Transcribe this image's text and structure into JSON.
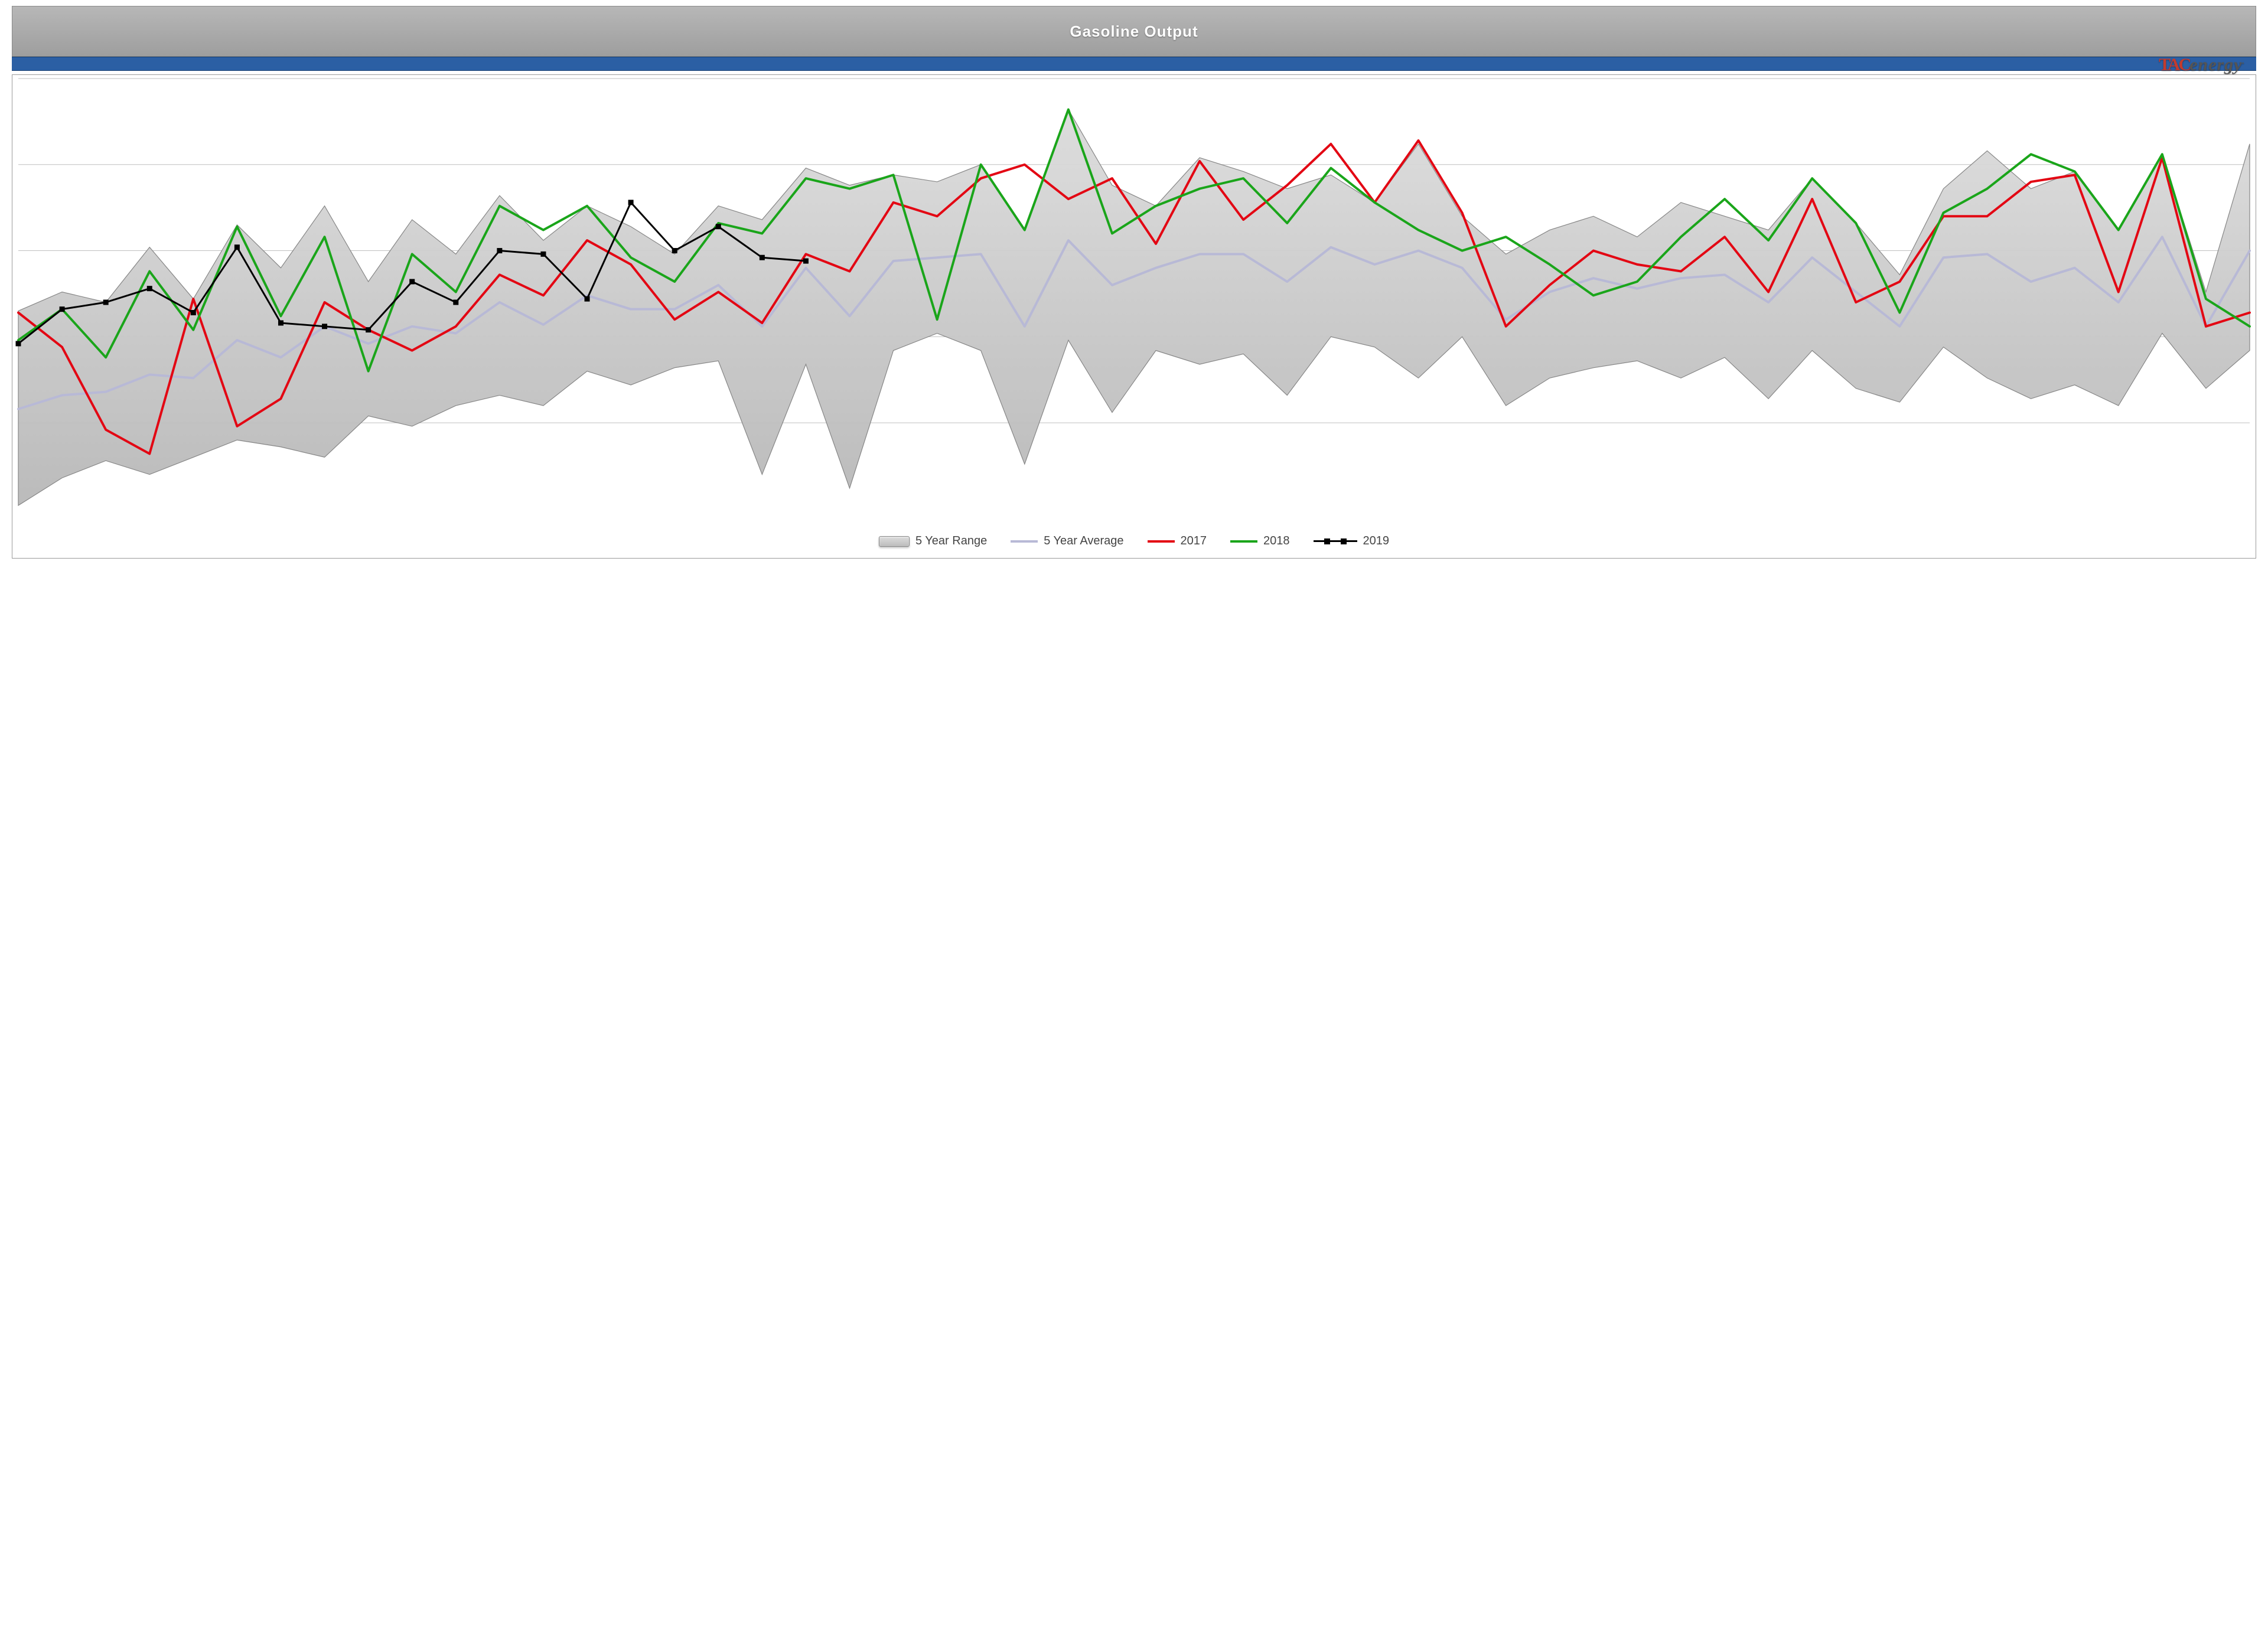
{
  "title": "Gasoline Output",
  "logo": {
    "tac": "TAC",
    "rest": "energy",
    "mark": "."
  },
  "y_axis_cut_label": "",
  "chart": {
    "type": "line_with_range_band",
    "x_count": 52,
    "ylim": [
      8400,
      11000
    ],
    "y_gridlines": [
      9000,
      9500,
      10000,
      10500,
      11000
    ],
    "background_color": "#ffffff",
    "grid_color": "#bfbfbf",
    "plot_border_color": "#9a9a9a",
    "range_band": {
      "fill_top": "#dcdcdc",
      "fill_bottom": "#b8b8b8",
      "edge_color": "#808080",
      "label": "5 Year Range",
      "upper": [
        9650,
        9760,
        9700,
        10020,
        9720,
        10150,
        9900,
        10260,
        9820,
        10180,
        9980,
        10320,
        10060,
        10260,
        10140,
        9980,
        10260,
        10180,
        10480,
        10380,
        10440,
        10400,
        10500,
        10120,
        10820,
        10380,
        10260,
        10540,
        10460,
        10360,
        10440,
        10280,
        10620,
        10200,
        9980,
        10120,
        10200,
        10080,
        10280,
        10200,
        10120,
        10420,
        10160,
        9860,
        10360,
        10580,
        10360,
        10460,
        10120,
        10560,
        9760,
        10620
      ],
      "lower": [
        8520,
        8680,
        8780,
        8700,
        8800,
        8900,
        8860,
        8800,
        9040,
        8980,
        9100,
        9160,
        9100,
        9300,
        9220,
        9320,
        9360,
        8700,
        9340,
        8620,
        9420,
        9520,
        9420,
        8760,
        9480,
        9060,
        9420,
        9340,
        9400,
        9160,
        9500,
        9440,
        9260,
        9500,
        9100,
        9260,
        9320,
        9360,
        9260,
        9380,
        9140,
        9420,
        9200,
        9120,
        9440,
        9260,
        9140,
        9220,
        9100,
        9520,
        9200,
        9420
      ]
    },
    "series": [
      {
        "name": "5 Year Average",
        "label": "5 Year Average",
        "color": "#b8b9d6",
        "width": 4,
        "marker": null,
        "values": [
          9080,
          9160,
          9180,
          9280,
          9260,
          9480,
          9380,
          9560,
          9460,
          9560,
          9520,
          9700,
          9570,
          9740,
          9660,
          9660,
          9800,
          9560,
          9900,
          9620,
          9940,
          9960,
          9980,
          9560,
          10060,
          9800,
          9900,
          9980,
          9980,
          9820,
          10020,
          9920,
          10000,
          9900,
          9600,
          9760,
          9840,
          9780,
          9840,
          9860,
          9700,
          9960,
          9760,
          9560,
          9960,
          9980,
          9820,
          9900,
          9700,
          10080,
          9560,
          10000
        ]
      },
      {
        "name": "2017",
        "label": "2017",
        "color": "#e30613",
        "width": 4,
        "marker": null,
        "values": [
          9640,
          9440,
          8960,
          8820,
          9720,
          8980,
          9140,
          9700,
          9540,
          9420,
          9560,
          9860,
          9740,
          10060,
          9920,
          9600,
          9760,
          9580,
          9980,
          9880,
          10280,
          10200,
          10420,
          10500,
          10300,
          10420,
          10040,
          10520,
          10180,
          10380,
          10620,
          10280,
          10640,
          10220,
          9560,
          9800,
          10000,
          9920,
          9880,
          10080,
          9760,
          10300,
          9700,
          9820,
          10200,
          10200,
          10400,
          10440,
          9760,
          10540,
          9560,
          9640
        ]
      },
      {
        "name": "2018",
        "label": "2018",
        "color": "#1aa51a",
        "width": 4,
        "marker": null,
        "values": [
          9480,
          9660,
          9380,
          9880,
          9540,
          10140,
          9620,
          10080,
          9300,
          9980,
          9760,
          10260,
          10120,
          10260,
          9960,
          9820,
          10160,
          10100,
          10420,
          10360,
          10440,
          9600,
          10500,
          10120,
          10820,
          10100,
          10260,
          10360,
          10420,
          10160,
          10480,
          10280,
          10120,
          10000,
          10080,
          9920,
          9740,
          9820,
          10080,
          10300,
          10060,
          10420,
          10160,
          9640,
          10220,
          10360,
          10560,
          10460,
          10120,
          10560,
          9720,
          9560
        ]
      },
      {
        "name": "2019",
        "label": "2019",
        "color": "#000000",
        "width": 3,
        "marker": "square",
        "marker_size": 9,
        "values": [
          9460,
          9660,
          9700,
          9780,
          9640,
          10020,
          9580,
          9560,
          9540,
          9820,
          9700,
          10000,
          9980,
          9720,
          10280,
          10000,
          10140,
          9960,
          9940
        ]
      }
    ],
    "legend_order": [
      "5 Year Range",
      "5 Year Average",
      "2017",
      "2018",
      "2019"
    ],
    "legend_fontsize": 20
  }
}
